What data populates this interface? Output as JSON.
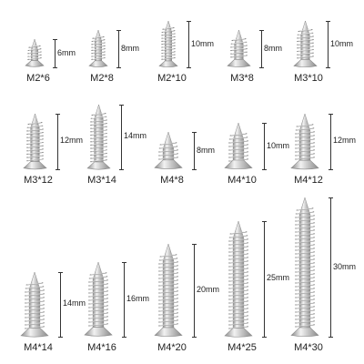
{
  "colors": {
    "metal_light": "#f2f2f2",
    "metal_mid": "#c9c9c9",
    "metal_dark": "#8a8a8a",
    "line": "#333333"
  },
  "screws": [
    {
      "name": "M2*6",
      "length": "6mm",
      "length_mm": 6,
      "diameter_mm": 2
    },
    {
      "name": "M2*8",
      "length": "8mm",
      "length_mm": 8,
      "diameter_mm": 2
    },
    {
      "name": "M2*10",
      "length": "10mm",
      "length_mm": 10,
      "diameter_mm": 2
    },
    {
      "name": "M3*8",
      "length": "8mm",
      "length_mm": 8,
      "diameter_mm": 3
    },
    {
      "name": "M3*10",
      "length": "10mm",
      "length_mm": 10,
      "diameter_mm": 3
    },
    {
      "name": "M3*12",
      "length": "12mm",
      "length_mm": 12,
      "diameter_mm": 3
    },
    {
      "name": "M3*14",
      "length": "14mm",
      "length_mm": 14,
      "diameter_mm": 3
    },
    {
      "name": "M4*8",
      "length": "8mm",
      "length_mm": 8,
      "diameter_mm": 4
    },
    {
      "name": "M4*10",
      "length": "10mm",
      "length_mm": 10,
      "diameter_mm": 4
    },
    {
      "name": "M4*12",
      "length": "12mm",
      "length_mm": 12,
      "diameter_mm": 4
    },
    {
      "name": "M4*14",
      "length": "14mm",
      "length_mm": 14,
      "diameter_mm": 4
    },
    {
      "name": "M4*16",
      "length": "16mm",
      "length_mm": 16,
      "diameter_mm": 4
    },
    {
      "name": "M4*20",
      "length": "20mm",
      "length_mm": 20,
      "diameter_mm": 4
    },
    {
      "name": "M4*25",
      "length": "25mm",
      "length_mm": 25,
      "diameter_mm": 4
    },
    {
      "name": "M4*30",
      "length": "30mm",
      "length_mm": 30,
      "diameter_mm": 4
    }
  ]
}
